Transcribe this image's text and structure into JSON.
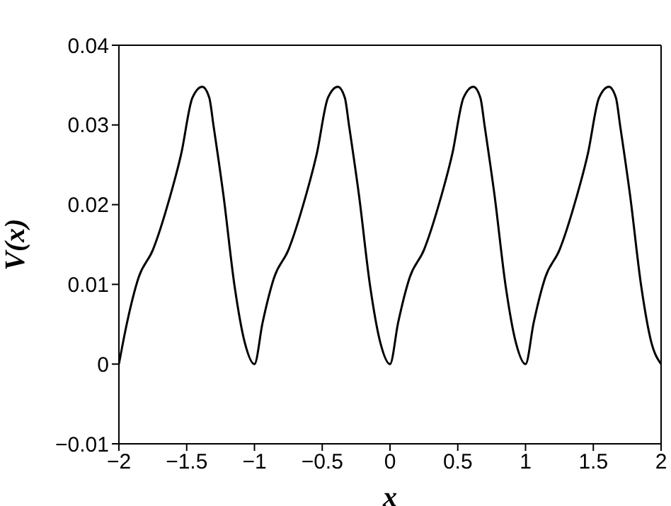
{
  "chart_data": {
    "type": "line",
    "xlabel": "x",
    "ylabel": "V(x)",
    "x": [
      -2,
      -1.94,
      -1.854,
      -1.75,
      -1.628,
      -1.54,
      -1.458,
      -1.385,
      -1.333,
      -1.302,
      -1.229,
      -1.146,
      -1.073,
      -1,
      -0.94,
      -0.854,
      -0.75,
      -0.628,
      -0.54,
      -0.458,
      -0.385,
      -0.333,
      -0.302,
      -0.229,
      -0.146,
      -0.073,
      0,
      0.06,
      0.146,
      0.25,
      0.372,
      0.46,
      0.542,
      0.615,
      0.667,
      0.698,
      0.771,
      0.854,
      0.927,
      1,
      1.06,
      1.146,
      1.25,
      1.372,
      1.46,
      1.542,
      1.615,
      1.667,
      1.698,
      1.771,
      1.854,
      1.927,
      2
    ],
    "series": [
      {
        "color": "#000000",
        "values": [
          0,
          0.0052,
          0.0109,
          0.0143,
          0.0207,
          0.0264,
          0.0334,
          0.0348,
          0.0334,
          0.0299,
          0.0212,
          0.0097,
          0.0028,
          0,
          0.0052,
          0.0109,
          0.0143,
          0.0207,
          0.0264,
          0.0334,
          0.0348,
          0.0334,
          0.0299,
          0.0212,
          0.0097,
          0.0028,
          0,
          0.0052,
          0.0109,
          0.0143,
          0.0207,
          0.0264,
          0.0334,
          0.0348,
          0.0334,
          0.0299,
          0.0212,
          0.0097,
          0.0028,
          0,
          0.0052,
          0.0109,
          0.0143,
          0.0207,
          0.0264,
          0.0334,
          0.0348,
          0.0334,
          0.0299,
          0.0212,
          0.0097,
          0.0028,
          0
        ]
      }
    ],
    "xlim": [
      -2,
      2
    ],
    "ylim": [
      -0.01,
      0.04
    ],
    "xticks": [
      {
        "value": -2,
        "label": "−2"
      },
      {
        "value": -1.5,
        "label": "−1.5"
      },
      {
        "value": -1,
        "label": "−1"
      },
      {
        "value": -0.5,
        "label": "−0.5"
      },
      0,
      0.5,
      1,
      1.5,
      2
    ],
    "yticks": [
      {
        "value": -0.01,
        "label": "−0.01"
      },
      0,
      0.01,
      0.02,
      0.03,
      0.04
    ],
    "marker": "none",
    "line_style": "solid"
  }
}
